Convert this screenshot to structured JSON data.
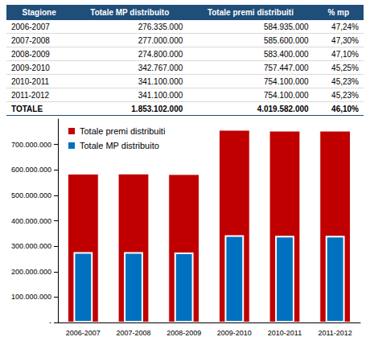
{
  "table": {
    "header": [
      "Stagione",
      "Totale MP distribuito",
      "Totale premi distribuiti",
      "% mp"
    ],
    "rows": [
      [
        "2006-2007",
        "276.335.000",
        "584.935.000",
        "47,24%"
      ],
      [
        "2007-2008",
        "277.000.000",
        "585.600.000",
        "47,30%"
      ],
      [
        "2008-2009",
        "274.800.000",
        "583.400.000",
        "47,10%"
      ],
      [
        "2009-2010",
        "342.767.000",
        "757.447.000",
        "45,25%"
      ],
      [
        "2010-2011",
        "341.100.000",
        "754.100.000",
        "45,23%"
      ],
      [
        "2011-2012",
        "341.100.000",
        "754.100.000",
        "45,23%"
      ]
    ],
    "total": [
      "TOTALE",
      "1.853.102.000",
      "4.019.582.000",
      "46,10%"
    ]
  },
  "chart_data": {
    "type": "bar",
    "categories": [
      "2006-2007",
      "2007-2008",
      "2008-2009",
      "2009-2010",
      "2010-2011",
      "2011-2012"
    ],
    "series": [
      {
        "name": "Totale premi distribuiti",
        "color": "#c00000",
        "values": [
          584935000,
          585600000,
          583400000,
          757447000,
          754100000,
          754100000
        ]
      },
      {
        "name": "Totale MP distribuito",
        "color": "#0070c0",
        "values": [
          276335000,
          277000000,
          274800000,
          342767000,
          341100000,
          341100000
        ]
      }
    ],
    "ylim": [
      0,
      800000000
    ],
    "yticks": [
      {
        "value": 0,
        "label": "-"
      },
      {
        "value": 100000000,
        "label": "100.000.000"
      },
      {
        "value": 200000000,
        "label": "200.000.000"
      },
      {
        "value": 300000000,
        "label": "300.000.000"
      },
      {
        "value": 400000000,
        "label": "400.000.000"
      },
      {
        "value": 500000000,
        "label": "500.000.000"
      },
      {
        "value": 600000000,
        "label": "600.000.000"
      },
      {
        "value": 700000000,
        "label": "700.000.000"
      }
    ],
    "grid": false,
    "legend": "upper left"
  }
}
